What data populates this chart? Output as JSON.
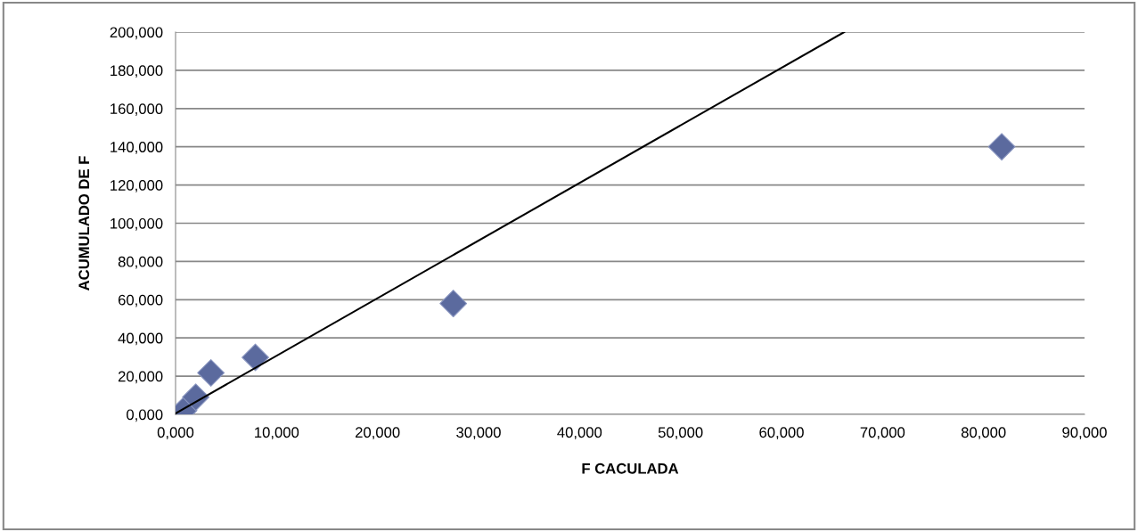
{
  "chart_data": {
    "type": "scatter",
    "xlabel": "F CACULADA",
    "ylabel": "ACUMULADO DE F",
    "xlim": [
      0,
      90
    ],
    "ylim": [
      0,
      200
    ],
    "xticks": [
      {
        "value": 0,
        "label": "0,000"
      },
      {
        "value": 10,
        "label": "10,000"
      },
      {
        "value": 20,
        "label": "20,000"
      },
      {
        "value": 30,
        "label": "30,000"
      },
      {
        "value": 40,
        "label": "40,000"
      },
      {
        "value": 50,
        "label": "50,000"
      },
      {
        "value": 60,
        "label": "60,000"
      },
      {
        "value": 70,
        "label": "70,000"
      },
      {
        "value": 80,
        "label": "80,000"
      },
      {
        "value": 90,
        "label": "90,000"
      }
    ],
    "yticks": [
      {
        "value": 0,
        "label": "0,000"
      },
      {
        "value": 20,
        "label": "20,000"
      },
      {
        "value": 40,
        "label": "40,000"
      },
      {
        "value": 60,
        "label": "60,000"
      },
      {
        "value": 80,
        "label": "80,000"
      },
      {
        "value": 100,
        "label": "100,000"
      },
      {
        "value": 120,
        "label": "120,000"
      },
      {
        "value": 140,
        "label": "140,000"
      },
      {
        "value": 160,
        "label": "160,000"
      },
      {
        "value": 180,
        "label": "180,000"
      },
      {
        "value": 200,
        "label": "200,000"
      }
    ],
    "grid": "y",
    "marker": "diamond",
    "legend": false,
    "series": [
      {
        "color": "#5b6a9e",
        "x": [
          0.8,
          2.0,
          3.5,
          7.9,
          27.5,
          81.8
        ],
        "values": [
          2,
          9,
          21.7,
          29.8,
          58,
          140
        ]
      },
      {
        "type": "line",
        "color": "#000000",
        "marker": "none",
        "x": [
          0,
          66.2
        ],
        "values": [
          0.5,
          200
        ]
      }
    ]
  }
}
